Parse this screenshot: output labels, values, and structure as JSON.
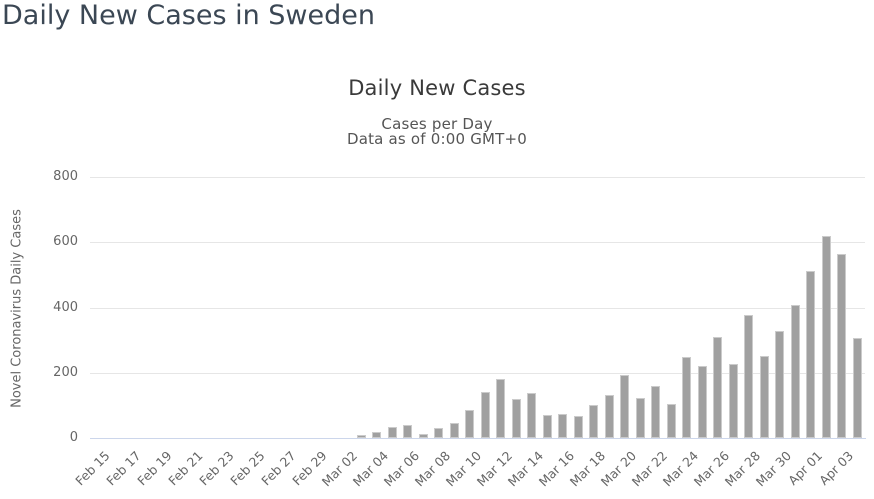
{
  "page": {
    "heading": "Daily New Cases in Sweden"
  },
  "chart": {
    "title": "Daily New Cases",
    "subtitle_line1": "Cases per Day",
    "subtitle_line2": "Data as of 0:00 GMT+0",
    "y_axis_title": "Novel Coronavirus Daily Cases"
  },
  "colors": {
    "bar": "#a0a0a0",
    "gridline": "#e6e6e6",
    "axis_line": "#ccd6eb",
    "tick_label": "#666666",
    "title": "#3a3a3a",
    "subtitle": "#555555",
    "heading": "#3b4754"
  },
  "chart_data": {
    "type": "bar",
    "title": "Daily New Cases",
    "subtitle": [
      "Cases per Day",
      "Data as of 0:00 GMT+0"
    ],
    "xlabel": "",
    "ylabel": "Novel Coronavirus Daily Cases",
    "ylim": [
      0,
      800
    ],
    "yticks": [
      0,
      200,
      400,
      600,
      800
    ],
    "grid": true,
    "legend": false,
    "xtick_every": 2,
    "categories": [
      "Feb 15",
      "Feb 16",
      "Feb 17",
      "Feb 18",
      "Feb 19",
      "Feb 20",
      "Feb 21",
      "Feb 22",
      "Feb 23",
      "Feb 24",
      "Feb 25",
      "Feb 26",
      "Feb 27",
      "Feb 28",
      "Feb 29",
      "Mar 01",
      "Mar 02",
      "Mar 03",
      "Mar 04",
      "Mar 05",
      "Mar 06",
      "Mar 07",
      "Mar 08",
      "Mar 09",
      "Mar 10",
      "Mar 11",
      "Mar 12",
      "Mar 13",
      "Mar 14",
      "Mar 15",
      "Mar 16",
      "Mar 17",
      "Mar 18",
      "Mar 19",
      "Mar 20",
      "Mar 21",
      "Mar 22",
      "Mar 23",
      "Mar 24",
      "Mar 25",
      "Mar 26",
      "Mar 27",
      "Mar 28",
      "Mar 29",
      "Mar 30",
      "Mar 31",
      "Apr 01",
      "Apr 02",
      "Apr 03",
      "Apr 04"
    ],
    "values": [
      0,
      0,
      0,
      0,
      0,
      0,
      0,
      0,
      0,
      0,
      0,
      0,
      0,
      0,
      0,
      0,
      0,
      9,
      19,
      34,
      40,
      13,
      32,
      46,
      86,
      140,
      181,
      119,
      138,
      71,
      73,
      67,
      101,
      133,
      194,
      124,
      158,
      105,
      248,
      222,
      310,
      226,
      377,
      252,
      328,
      408,
      512,
      620,
      565,
      308
    ]
  }
}
